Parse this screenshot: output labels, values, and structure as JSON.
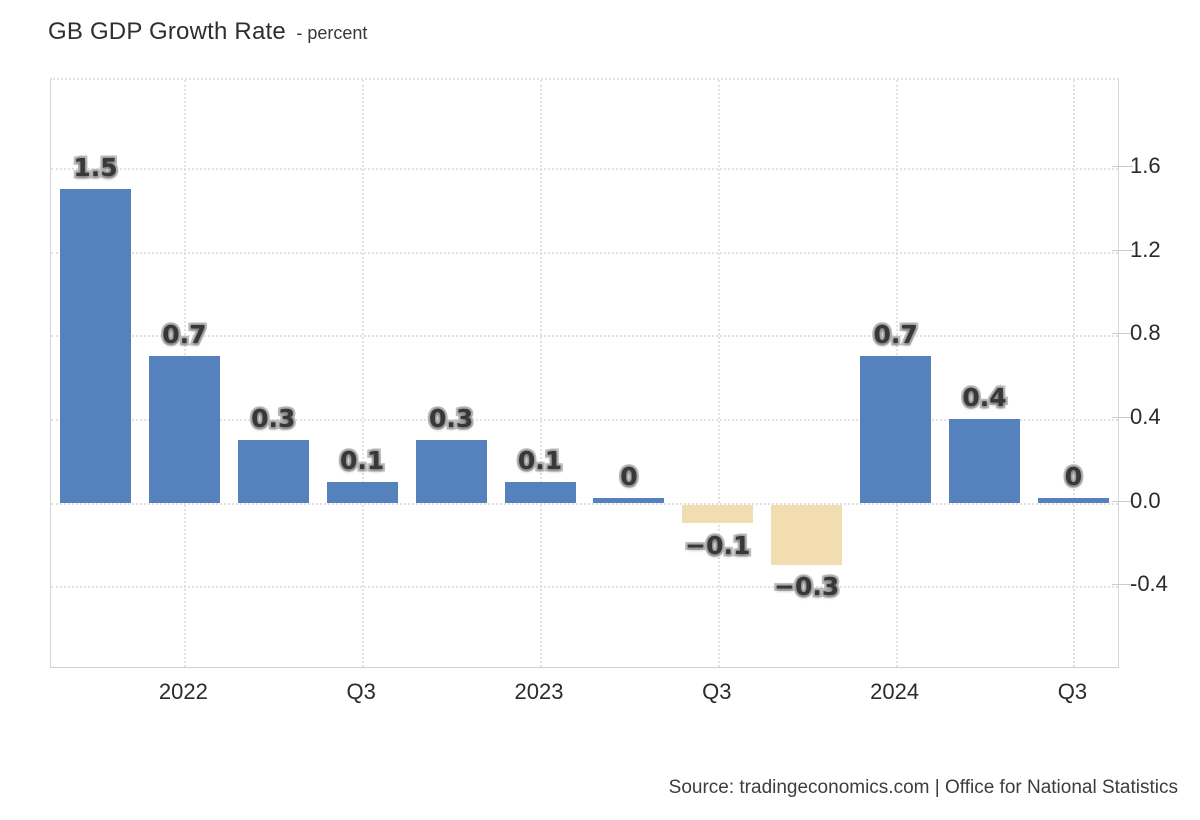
{
  "title": {
    "text": "GB GDP Growth Rate",
    "unit": "- percent"
  },
  "source_text": "Source: tradingeconomics.com | Office for National Statistics",
  "colors": {
    "positive_bar": "#5582bc",
    "negative_bar": "#f2ddb0",
    "grid": "#e2e2e2",
    "axis_text": "#2b2b2b",
    "value_label_fill": "#383838",
    "value_label_halo": "#c2c2c2"
  },
  "chart_data": {
    "type": "bar",
    "title": "GB GDP Growth Rate",
    "ylabel": "percent",
    "values": [
      1.5,
      0.7,
      0.3,
      0.1,
      0.3,
      0.1,
      0,
      -0.1,
      -0.3,
      0.7,
      0.4,
      0
    ],
    "bar_labels": [
      "1.5",
      "0.7",
      "0.3",
      "0.1",
      "0.3",
      "0.1",
      "0",
      "−0.1",
      "−0.3",
      "0.7",
      "0.4",
      "0"
    ],
    "x_ticks": [
      {
        "label": "2022",
        "bar": 1
      },
      {
        "label": "Q3",
        "bar": 3
      },
      {
        "label": "2023",
        "bar": 5
      },
      {
        "label": "Q3",
        "bar": 7
      },
      {
        "label": "2024",
        "bar": 9
      },
      {
        "label": "Q3",
        "bar": 11
      }
    ],
    "y_ticks": [
      {
        "v": 1.6,
        "label": "1.6"
      },
      {
        "v": 1.2,
        "label": "1.2"
      },
      {
        "v": 0.8,
        "label": "0.8"
      },
      {
        "v": 0.4,
        "label": "0.4"
      },
      {
        "v": 0.0,
        "label": "0.0"
      },
      {
        "v": -0.4,
        "label": "-0.4"
      }
    ],
    "ylim": [
      -0.8,
      2.02
    ],
    "grid": "dotted",
    "legend": "none"
  }
}
